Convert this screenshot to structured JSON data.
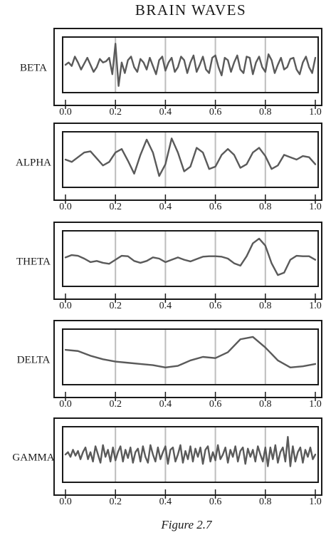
{
  "title": "BRAIN WAVES",
  "caption": "Figure 2.7",
  "chart_data": [
    {
      "type": "line",
      "label": "BETA",
      "color": "#5a5a5a",
      "xlim": [
        0,
        1
      ],
      "ylim": [
        -1,
        1
      ],
      "grid": true,
      "xticks": [
        {
          "value": 0,
          "label": "0.0"
        },
        0.2,
        0.4,
        0.6,
        0.8,
        {
          "value": 1,
          "label": "1.0"
        }
      ],
      "x": [
        0,
        0.0125,
        0.025,
        0.0375,
        0.05,
        0.0625,
        0.075,
        0.0875,
        0.1,
        0.1125,
        0.125,
        0.1375,
        0.15,
        0.1625,
        0.175,
        0.1875,
        0.2,
        0.2125,
        0.225,
        0.2375,
        0.25,
        0.2625,
        0.275,
        0.2875,
        0.3,
        0.3125,
        0.325,
        0.3375,
        0.35,
        0.3625,
        0.375,
        0.3875,
        0.4,
        0.4125,
        0.425,
        0.4375,
        0.45,
        0.4625,
        0.475,
        0.4875,
        0.5,
        0.5125,
        0.525,
        0.5375,
        0.55,
        0.5625,
        0.575,
        0.5875,
        0.6,
        0.6125,
        0.625,
        0.6375,
        0.65,
        0.6625,
        0.675,
        0.6875,
        0.7,
        0.7125,
        0.725,
        0.7375,
        0.75,
        0.7625,
        0.775,
        0.7875,
        0.8,
        0.8125,
        0.825,
        0.8375,
        0.85,
        0.8625,
        0.875,
        0.8875,
        0.9,
        0.9125,
        0.925,
        0.9375,
        0.95,
        0.9625,
        0.975,
        0.9875,
        1
      ],
      "values": [
        0.0,
        0.1,
        -0.05,
        0.35,
        0.1,
        -0.2,
        0.05,
        0.3,
        0.0,
        -0.3,
        -0.1,
        0.25,
        0.1,
        0.15,
        0.3,
        -0.4,
        0.9,
        -0.9,
        0.1,
        -0.35,
        0.2,
        0.35,
        -0.1,
        -0.3,
        0.25,
        0.1,
        -0.2,
        0.3,
        -0.05,
        -0.4,
        0.2,
        0.35,
        -0.25,
        0.1,
        0.3,
        -0.3,
        -0.1,
        0.35,
        0.2,
        -0.35,
        0.1,
        0.4,
        -0.3,
        0.0,
        0.35,
        -0.2,
        -0.35,
        0.3,
        0.4,
        -0.1,
        -0.45,
        0.3,
        0.2,
        -0.3,
        0.1,
        0.4,
        -0.2,
        -0.35,
        0.35,
        0.3,
        -0.4,
        0.1,
        0.35,
        -0.1,
        -0.3,
        0.45,
        0.2,
        -0.35,
        0.0,
        0.3,
        -0.2,
        -0.1,
        0.25,
        0.3,
        -0.2,
        -0.4,
        0.1,
        0.35,
        -0.1,
        -0.35,
        0.3
      ]
    },
    {
      "type": "line",
      "label": "ALPHA",
      "color": "#5a5a5a",
      "xlim": [
        0,
        1
      ],
      "ylim": [
        -1,
        1
      ],
      "grid": true,
      "xticks": [
        {
          "value": 0,
          "label": "0.0"
        },
        0.2,
        0.4,
        0.6,
        0.8,
        {
          "value": 1,
          "label": "1.0"
        }
      ],
      "x": [
        0,
        0.025,
        0.05,
        0.075,
        0.1,
        0.125,
        0.15,
        0.175,
        0.2,
        0.225,
        0.25,
        0.275,
        0.3,
        0.325,
        0.35,
        0.375,
        0.4,
        0.425,
        0.45,
        0.475,
        0.5,
        0.525,
        0.55,
        0.575,
        0.6,
        0.625,
        0.65,
        0.675,
        0.7,
        0.725,
        0.75,
        0.775,
        0.8,
        0.825,
        0.85,
        0.875,
        0.9,
        0.925,
        0.95,
        0.975,
        1
      ],
      "values": [
        0.0,
        -0.1,
        0.1,
        0.3,
        0.35,
        0.05,
        -0.25,
        -0.1,
        0.3,
        0.45,
        -0.05,
        -0.6,
        0.2,
        0.85,
        0.3,
        -0.7,
        -0.2,
        0.9,
        0.3,
        -0.5,
        -0.3,
        0.5,
        0.3,
        -0.4,
        -0.3,
        0.2,
        0.45,
        0.2,
        -0.35,
        -0.2,
        0.3,
        0.5,
        0.15,
        -0.4,
        -0.25,
        0.2,
        0.1,
        0.0,
        0.15,
        0.1,
        -0.2
      ]
    },
    {
      "type": "line",
      "label": "THETA",
      "color": "#5a5a5a",
      "xlim": [
        0,
        1
      ],
      "ylim": [
        -1,
        1
      ],
      "grid": true,
      "xticks": [
        {
          "value": 0,
          "label": "0.0"
        },
        0.2,
        0.4,
        0.6,
        0.8,
        {
          "value": 1,
          "label": "1.0"
        }
      ],
      "x": [
        0,
        0.025,
        0.05,
        0.075,
        0.1,
        0.125,
        0.15,
        0.175,
        0.2,
        0.225,
        0.25,
        0.275,
        0.3,
        0.325,
        0.35,
        0.375,
        0.4,
        0.425,
        0.45,
        0.475,
        0.5,
        0.525,
        0.55,
        0.575,
        0.6,
        0.625,
        0.65,
        0.675,
        0.7,
        0.725,
        0.75,
        0.775,
        0.8,
        0.825,
        0.85,
        0.875,
        0.9,
        0.925,
        0.95,
        0.975,
        1
      ],
      "values": [
        0.05,
        0.15,
        0.12,
        0.0,
        -0.15,
        -0.1,
        -0.18,
        -0.22,
        -0.05,
        0.12,
        0.1,
        -0.1,
        -0.18,
        -0.1,
        0.05,
        0.0,
        -0.15,
        -0.05,
        0.05,
        -0.05,
        -0.12,
        -0.02,
        0.08,
        0.1,
        0.1,
        0.08,
        0.0,
        -0.2,
        -0.3,
        0.1,
        0.65,
        0.85,
        0.55,
        -0.2,
        -0.7,
        -0.6,
        -0.05,
        0.12,
        0.1,
        0.1,
        -0.05
      ]
    },
    {
      "type": "line",
      "label": "DELTA",
      "color": "#5a5a5a",
      "xlim": [
        0,
        1
      ],
      "ylim": [
        -1,
        1
      ],
      "grid": true,
      "xticks": [
        {
          "value": 0,
          "label": "0.0"
        },
        0.2,
        0.4,
        0.6,
        0.8,
        {
          "value": 1,
          "label": "1.0"
        }
      ],
      "x": [
        0,
        0.05,
        0.1,
        0.15,
        0.2,
        0.25,
        0.3,
        0.35,
        0.4,
        0.45,
        0.5,
        0.55,
        0.6,
        0.65,
        0.7,
        0.75,
        0.8,
        0.85,
        0.9,
        0.95,
        1
      ],
      "values": [
        0.3,
        0.25,
        0.05,
        -0.1,
        -0.2,
        -0.25,
        -0.3,
        -0.35,
        -0.45,
        -0.38,
        -0.15,
        0.0,
        -0.05,
        0.2,
        0.75,
        0.85,
        0.4,
        -0.15,
        -0.45,
        -0.4,
        -0.3
      ]
    },
    {
      "type": "line",
      "label": "GAMMA",
      "color": "#5a5a5a",
      "xlim": [
        0,
        1
      ],
      "ylim": [
        -1,
        1
      ],
      "grid": true,
      "xticks": [
        {
          "value": 0,
          "label": "0.0"
        },
        0.2,
        0.4,
        0.6,
        0.8,
        {
          "value": 1,
          "label": "1.0"
        }
      ],
      "x": [
        0,
        0.01,
        0.02,
        0.03,
        0.04,
        0.05,
        0.06,
        0.07,
        0.08,
        0.09,
        0.1,
        0.11,
        0.12,
        0.13,
        0.14,
        0.15,
        0.16,
        0.17,
        0.18,
        0.19,
        0.2,
        0.21,
        0.22,
        0.23,
        0.24,
        0.25,
        0.26,
        0.27,
        0.28,
        0.29,
        0.3,
        0.31,
        0.32,
        0.33,
        0.34,
        0.35,
        0.36,
        0.37,
        0.38,
        0.39,
        0.4,
        0.41,
        0.42,
        0.43,
        0.44,
        0.45,
        0.46,
        0.47,
        0.48,
        0.49,
        0.5,
        0.51,
        0.52,
        0.53,
        0.54,
        0.55,
        0.56,
        0.57,
        0.58,
        0.59,
        0.6,
        0.61,
        0.62,
        0.63,
        0.64,
        0.65,
        0.66,
        0.67,
        0.68,
        0.69,
        0.7,
        0.71,
        0.72,
        0.73,
        0.74,
        0.75,
        0.76,
        0.77,
        0.78,
        0.79,
        0.8,
        0.81,
        0.82,
        0.83,
        0.84,
        0.85,
        0.86,
        0.87,
        0.88,
        0.89,
        0.9,
        0.91,
        0.92,
        0.93,
        0.94,
        0.95,
        0.96,
        0.97,
        0.98,
        0.99,
        1
      ],
      "values": [
        0.0,
        0.1,
        -0.1,
        0.2,
        -0.05,
        0.15,
        -0.2,
        0.1,
        0.3,
        -0.2,
        0.1,
        -0.3,
        0.35,
        0.0,
        -0.35,
        0.4,
        -0.1,
        0.2,
        -0.3,
        0.3,
        -0.25,
        0.1,
        0.35,
        -0.3,
        0.2,
        -0.15,
        0.3,
        -0.35,
        0.1,
        0.25,
        -0.3,
        0.35,
        -0.1,
        -0.35,
        0.4,
        0.0,
        -0.3,
        0.3,
        -0.2,
        0.1,
        0.35,
        -0.4,
        0.2,
        0.3,
        -0.3,
        0.0,
        0.4,
        -0.35,
        0.15,
        -0.2,
        0.35,
        -0.3,
        0.25,
        -0.1,
        0.3,
        -0.4,
        0.2,
        0.35,
        -0.3,
        0.1,
        -0.25,
        0.4,
        -0.2,
        0.0,
        0.3,
        -0.35,
        0.2,
        -0.1,
        0.35,
        -0.3,
        0.15,
        0.3,
        -0.4,
        0.25,
        -0.1,
        0.2,
        -0.3,
        0.35,
        0.0,
        -0.3,
        0.3,
        -0.5,
        0.3,
        -0.2,
        0.4,
        -0.35,
        0.1,
        0.3,
        -0.3,
        0.75,
        -0.5,
        0.35,
        -0.3,
        0.1,
        0.3,
        -0.35,
        0.2,
        -0.1,
        0.3,
        -0.2,
        0.0
      ]
    }
  ]
}
